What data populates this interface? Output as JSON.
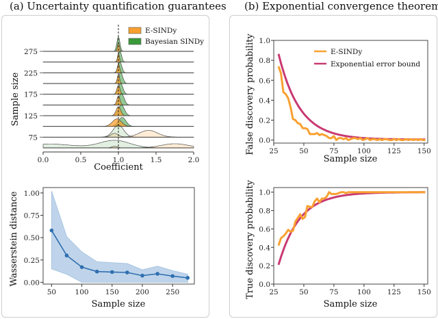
{
  "panels": {
    "a_title": "(a) Uncertainty quantification guarantees",
    "b_title": "(b) Exponential convergence theorem"
  },
  "colors": {
    "esindy": "#f9a030",
    "bayesian": "#3a9a3a",
    "bound": "#c83a72",
    "wass": "#2f6fb0",
    "wass_band": "#a9c6e3"
  },
  "chart_data": [
    {
      "id": "ridgeline",
      "type": "area",
      "title": "",
      "xlabel": "Coefficient",
      "ylabel": "Sample size",
      "xlim": [
        0.0,
        2.0
      ],
      "xticks": [
        "0.0",
        "0.5",
        "1.0",
        "1.5",
        "2.0"
      ],
      "yticks": [
        "75",
        "125",
        "175",
        "225",
        "275"
      ],
      "sample_sizes": [
        50,
        75,
        100,
        125,
        150,
        175,
        200,
        225,
        250,
        275
      ],
      "reference_line": 1.0,
      "legend": [
        "E-SINDy",
        "Bayesian SINDy"
      ],
      "legend_position": "top-right",
      "series": [
        {
          "name": "E-SINDy",
          "modes": [
            {
              "n": 50,
              "peaks": [
                [
                  0.95,
                  0.04,
                  0.2
                ],
                [
                  1.75,
                  0.18,
                  0.55
                ]
              ]
            },
            {
              "n": 75,
              "peaks": [
                [
                  0.95,
                  0.05,
                  0.5
                ],
                [
                  1.4,
                  0.12,
                  0.9
                ]
              ]
            },
            {
              "n": 100,
              "peaks": [
                [
                  0.98,
                  0.06,
                  1.0
                ]
              ]
            },
            {
              "n": 125,
              "peaks": [
                [
                  1.0,
                  0.03,
                  1.0
                ]
              ]
            },
            {
              "n": 150,
              "peaks": [
                [
                  1.0,
                  0.02,
                  1.0
                ]
              ]
            },
            {
              "n": 175,
              "peaks": [
                [
                  1.0,
                  0.02,
                  1.0
                ]
              ]
            },
            {
              "n": 200,
              "peaks": [
                [
                  1.0,
                  0.015,
                  1.0
                ]
              ]
            },
            {
              "n": 225,
              "peaks": [
                [
                  1.0,
                  0.015,
                  1.0
                ]
              ]
            },
            {
              "n": 250,
              "peaks": [
                [
                  1.0,
                  0.012,
                  1.0
                ]
              ]
            },
            {
              "n": 275,
              "peaks": [
                [
                  1.0,
                  0.012,
                  1.0
                ]
              ]
            }
          ]
        },
        {
          "name": "Bayesian SINDy",
          "modes": [
            {
              "n": 50,
              "peaks": [
                [
                  0.95,
                  0.2,
                  1.0
                ],
                [
                  0.1,
                  0.3,
                  0.5
                ]
              ]
            },
            {
              "n": 75,
              "peaks": [
                [
                  1.0,
                  0.07,
                  1.6
                ]
              ]
            },
            {
              "n": 100,
              "peaks": [
                [
                  1.05,
                  0.05,
                  1.2
                ]
              ]
            },
            {
              "n": 125,
              "peaks": [
                [
                  1.04,
                  0.04,
                  1.2
                ]
              ]
            },
            {
              "n": 150,
              "peaks": [
                [
                  1.04,
                  0.035,
                  1.3
                ]
              ]
            },
            {
              "n": 175,
              "peaks": [
                [
                  1.03,
                  0.03,
                  1.2
                ]
              ]
            },
            {
              "n": 200,
              "peaks": [
                [
                  1.03,
                  0.028,
                  1.2
                ]
              ]
            },
            {
              "n": 225,
              "peaks": [
                [
                  1.02,
                  0.025,
                  1.2
                ]
              ]
            },
            {
              "n": 250,
              "peaks": [
                [
                  1.02,
                  0.022,
                  1.2
                ]
              ]
            },
            {
              "n": 275,
              "peaks": [
                [
                  1.0,
                  0.02,
                  1.6
                ]
              ]
            }
          ]
        }
      ]
    },
    {
      "id": "wasserstein",
      "type": "line",
      "xlabel": "Sample size",
      "ylabel": "Wasserstein distance",
      "xlim": [
        36,
        286
      ],
      "ylim": [
        -0.02,
        1.06
      ],
      "xticks": [
        "50",
        "100",
        "150",
        "200",
        "250"
      ],
      "yticks": [
        "0.00",
        "0.25",
        "0.50",
        "0.75",
        "1.00"
      ],
      "x": [
        50,
        75,
        100,
        125,
        150,
        175,
        200,
        225,
        250,
        275
      ],
      "series": [
        {
          "name": "mean",
          "values": [
            0.58,
            0.3,
            0.17,
            0.12,
            0.115,
            0.11,
            0.075,
            0.095,
            0.07,
            0.05
          ]
        },
        {
          "name": "upper",
          "values": [
            1.02,
            0.51,
            0.34,
            0.23,
            0.22,
            0.21,
            0.14,
            0.18,
            0.13,
            0.09
          ]
        },
        {
          "name": "lower",
          "values": [
            0.15,
            0.09,
            0.0,
            0.0,
            0.0,
            0.0,
            0.0,
            0.0,
            0.0,
            0.0
          ]
        }
      ]
    },
    {
      "id": "false-discovery",
      "type": "line",
      "xlabel": "Sample size",
      "ylabel": "False discovery probability",
      "xlim": [
        25,
        153
      ],
      "ylim": [
        -0.03,
        1.0
      ],
      "xticks": [
        "25",
        "50",
        "75",
        "100",
        "125",
        "150"
      ],
      "yticks": [
        "0.0",
        "0.2",
        "0.4",
        "0.6",
        "0.8",
        "1.0"
      ],
      "legend": [
        "E-SINDy",
        "Exponential error bound"
      ],
      "legend_position": "top-right",
      "series": [
        {
          "name": "E-SINDy",
          "x": [
            29,
            31,
            33,
            35,
            37,
            39,
            41,
            43,
            45,
            47,
            49,
            51,
            53,
            55,
            57,
            59,
            61,
            63,
            65,
            67,
            69,
            71,
            73,
            75,
            77,
            79,
            81,
            83,
            85,
            87,
            89,
            91,
            93,
            95,
            97,
            99,
            101,
            103,
            105,
            107,
            109,
            111,
            113,
            115,
            117,
            119,
            121,
            123,
            125,
            127,
            129,
            131,
            133,
            135,
            137,
            139,
            141,
            143,
            145,
            147,
            149,
            151
          ],
          "values": [
            0.74,
            0.67,
            0.48,
            0.46,
            0.42,
            0.33,
            0.21,
            0.2,
            0.17,
            0.16,
            0.12,
            0.12,
            0.11,
            0.06,
            0.06,
            0.06,
            0.07,
            0.05,
            0.06,
            0.05,
            0.04,
            0.02,
            0.02,
            0.04,
            0.0,
            0.02,
            0.02,
            0.01,
            0.02,
            0.0,
            0.01,
            0.02,
            0.02,
            0.01,
            0.02,
            0.0,
            0.01,
            0.02,
            0.0,
            0.01,
            0.01,
            0.0,
            0.01,
            0.0,
            0.01,
            0.01,
            0.0,
            0.0,
            0.01,
            0.0,
            0.01,
            0.0,
            0.0,
            0.01,
            0.0,
            0.01,
            0.0,
            0.01,
            0.0,
            0.01,
            0.0,
            0.0
          ]
        },
        {
          "name": "Exponential error bound",
          "formula": "0.86*exp(-0.057*(n-29))",
          "x_range": [
            29,
            151
          ]
        }
      ]
    },
    {
      "id": "true-discovery",
      "type": "line",
      "xlabel": "Sample size",
      "ylabel": "True discovery probability",
      "xlim": [
        25,
        153
      ],
      "ylim": [
        0.0,
        1.05
      ],
      "xticks": [
        "25",
        "50",
        "75",
        "100",
        "125",
        "150"
      ],
      "yticks": [
        "0.0",
        "0.2",
        "0.4",
        "0.6",
        "0.8",
        "1.0"
      ],
      "series": [
        {
          "name": "E-SINDy",
          "x": [
            29,
            31,
            33,
            35,
            37,
            39,
            41,
            43,
            45,
            47,
            49,
            51,
            53,
            55,
            57,
            59,
            61,
            63,
            65,
            67,
            69,
            71,
            73,
            75,
            77,
            79,
            81,
            83,
            85,
            87,
            89,
            91,
            93,
            95,
            97,
            99,
            101,
            110,
            120,
            130,
            140,
            151
          ],
          "values": [
            0.42,
            0.5,
            0.52,
            0.55,
            0.59,
            0.57,
            0.58,
            0.68,
            0.72,
            0.76,
            0.71,
            0.73,
            0.85,
            0.84,
            0.84,
            0.9,
            0.93,
            0.89,
            0.93,
            0.93,
            0.95,
            1.0,
            0.98,
            0.98,
            0.98,
            0.99,
            1.0,
            1.0,
            0.99,
            1.0,
            1.0,
            1.0,
            1.0,
            1.0,
            1.0,
            1.0,
            1.0,
            1.0,
            1.0,
            1.0,
            1.0,
            1.0
          ]
        },
        {
          "name": "Exponential error bound",
          "formula": "1-0.79*exp(-0.057*(n-29))",
          "x_range": [
            29,
            151
          ]
        }
      ]
    }
  ]
}
